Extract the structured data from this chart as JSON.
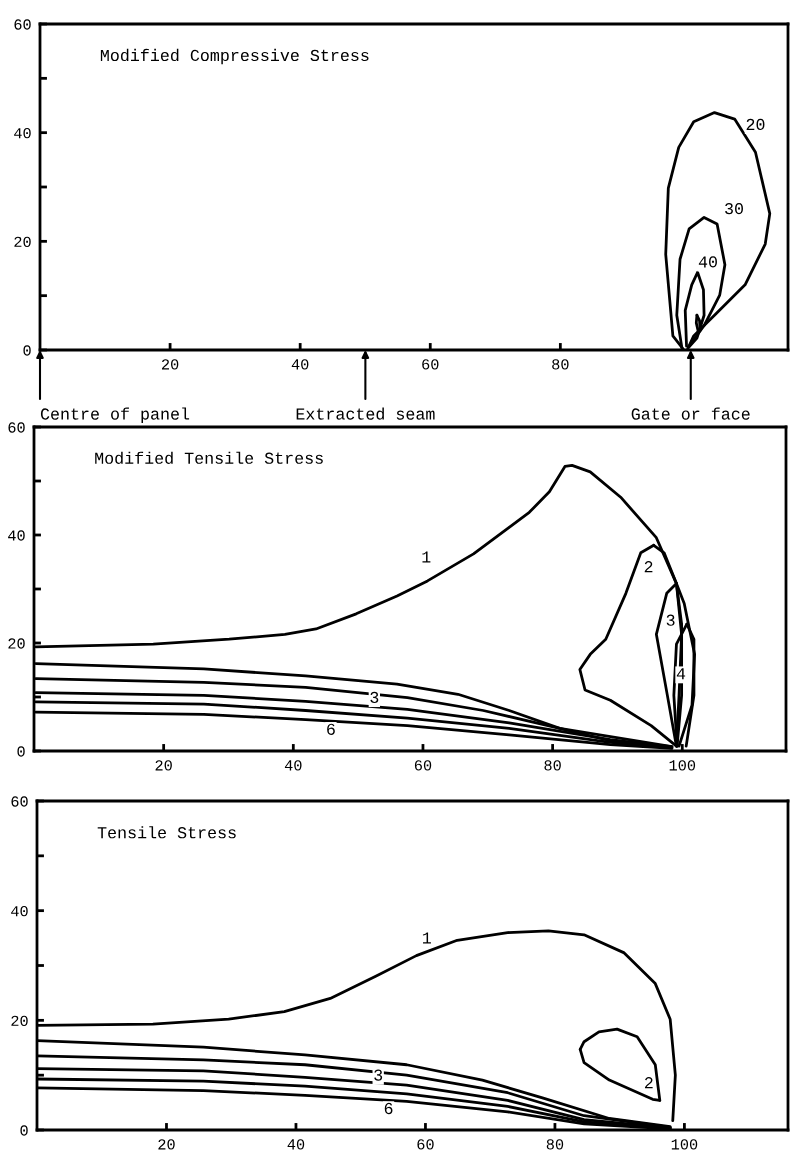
{
  "chart_data": [
    {
      "type": "line",
      "title": "Modified Compressive Stress",
      "xlim": [
        0,
        115
      ],
      "ylim": [
        0,
        60
      ],
      "xticks": [
        20,
        40,
        60,
        80
      ],
      "yticks": [
        0,
        {
          "value": 10,
          "label": null
        },
        20,
        {
          "value": 30,
          "label": null
        },
        40,
        {
          "value": 50,
          "label": null
        },
        60
      ],
      "line_style": "solid",
      "series": [
        {
          "color": "#000000",
          "x": [
            99,
            97.3,
            96.2,
            96.6,
            98.2,
            100.5,
            103.7,
            106.8,
            110,
            112.2,
            111.5,
            108.4,
            103.7,
            100.5,
            99.5
          ],
          "values": [
            0,
            2.6,
            17.6,
            29.8,
            37.3,
            42,
            43.7,
            42.5,
            36.4,
            25.1,
            19.5,
            12,
            6.4,
            2.6,
            0
          ]
        },
        {
          "color": "#000000",
          "x": [
            98.7,
            97.9,
            98.4,
            99.8,
            102.1,
            104.1,
            105.3,
            104.5,
            102.1,
            99.8
          ],
          "values": [
            0.3,
            6.4,
            16.7,
            22.3,
            24.4,
            23.2,
            15.7,
            10.1,
            4.5,
            0.7
          ]
        },
        {
          "color": "#000000",
          "x": [
            99.4,
            99.2,
            100.2,
            101.1,
            102,
            102.1,
            101,
            99.8
          ],
          "values": [
            0.7,
            7.3,
            12,
            14.3,
            11.1,
            6.4,
            2.2,
            0.6
          ]
        },
        {
          "color": "#000000",
          "x": [
            101,
            101.4,
            101.5,
            101.2
          ],
          "values": [
            6.4,
            5.4,
            3.6,
            3.4
          ]
        },
        {
          "color": "#000000",
          "x": [
            101.2,
            100.9,
            101
          ],
          "values": [
            3.4,
            5,
            6.4
          ]
        }
      ],
      "annotations": [
        {
          "text": "20",
          "x": 110,
          "y": 41.3
        },
        {
          "text": "30",
          "x": 106.7,
          "y": 25.8
        },
        {
          "text": "40",
          "x": 102.7,
          "y": 16
        },
        "Centre of panel",
        "Extracted seam",
        "Gate or face"
      ]
    },
    {
      "type": "line",
      "title": "Modified Tensile Stress",
      "xlim": [
        0,
        116
      ],
      "ylim": [
        0,
        60
      ],
      "xticks": [
        20,
        40,
        60,
        80,
        100
      ],
      "yticks": [
        0,
        {
          "value": 10,
          "label": null
        },
        20,
        {
          "value": 30,
          "label": null
        },
        40,
        {
          "value": 50,
          "label": null
        },
        60
      ],
      "line_style": "solid",
      "series": [
        {
          "color": "#000000",
          "x": [
            0.3,
            18.4,
            30.1,
            38.7,
            43.5,
            49.7,
            56,
            60.7,
            67.8,
            76.4,
            79.5,
            81.9,
            83,
            85.8,
            90.5,
            96,
            99.1,
            100.3,
            101.9,
            101.5,
            99.5
          ],
          "values": [
            19.3,
            19.8,
            20.7,
            21.6,
            22.6,
            25.4,
            28.7,
            31.5,
            36.5,
            44.2,
            48,
            52.7,
            52.9,
            51.7,
            47,
            39.5,
            31,
            27.3,
            17.9,
            8.5,
            0.9
          ]
        },
        {
          "color": "#000000",
          "x": [
            99.1,
            95.2,
            88.9,
            85,
            84.2,
            85.8,
            88.2,
            91.3,
            93.6,
            95.6
          ],
          "values": [
            0.9,
            4.7,
            9.4,
            11.3,
            15.1,
            17.9,
            20.7,
            29.2,
            36.7,
            38.1
          ]
        },
        {
          "color": "#000000",
          "x": [
            95.6,
            97.2,
            99.1,
            99.9,
            99.5,
            99.1
          ],
          "values": [
            38.1,
            36.7,
            31,
            21.6,
            10.3,
            0.9
          ]
        },
        {
          "color": "#000000",
          "x": [
            99.1,
            97.7,
            96,
            97.6,
            99.1
          ],
          "values": [
            0.9,
            10.3,
            21.6,
            29.2,
            31
          ]
        },
        {
          "color": "#000000",
          "x": [
            99.1,
            99.9,
            99.9,
            99.2
          ],
          "values": [
            31,
            23.5,
            10.3,
            0.9
          ]
        },
        {
          "color": "#000000",
          "x": [
            99.2,
            98.7,
            99.1,
            100.7
          ],
          "values": [
            0.9,
            10.3,
            19.8,
            23.5
          ]
        },
        {
          "color": "#000000",
          "x": [
            100.7,
            101.8,
            101.8,
            100.6
          ],
          "values": [
            23.5,
            20.7,
            10.3,
            0.9
          ]
        },
        {
          "color": "#000000",
          "x": [
            0.3,
            26.2,
            41.9,
            56,
            65.4,
            73.3,
            81.1,
            88.9,
            98.4
          ],
          "values": [
            16.2,
            15.2,
            13.9,
            12.4,
            10.5,
            7.5,
            4.2,
            1.9,
            0.8
          ]
        },
        {
          "color": "#000000",
          "x": [
            0.3,
            26.2,
            41.9,
            57.6,
            69.3,
            81.1,
            98.4
          ],
          "values": [
            13.4,
            12.7,
            11.8,
            9.9,
            7.5,
            4.2,
            0.8
          ]
        },
        {
          "color": "#000000",
          "x": [
            0.3,
            26.2,
            41.9,
            57.6,
            73.3,
            88.9,
            98.4
          ],
          "values": [
            10.8,
            10.3,
            9.2,
            7.7,
            5.2,
            2.1,
            0.7
          ]
        },
        {
          "color": "#000000",
          "x": [
            0.3,
            26.2,
            41.9,
            57.6,
            73.3,
            88.9,
            98.4
          ],
          "values": [
            9.1,
            8.7,
            7.5,
            6.1,
            4.2,
            1.6,
            0.6
          ]
        },
        {
          "color": "#000000",
          "x": [
            0.3,
            26.2,
            41.9,
            57.6,
            73.3,
            88.9,
            98.4
          ],
          "values": [
            7.2,
            6.8,
            5.8,
            4.7,
            3,
            1.2,
            0.5
          ]
        }
      ],
      "annotations": [
        {
          "text": "1",
          "x": 60.5,
          "y": 35.7
        },
        {
          "text": "2",
          "x": 94.8,
          "y": 33.9
        },
        {
          "text": "3",
          "x": 98.2,
          "y": 24
        },
        {
          "text": "4",
          "x": 99.8,
          "y": 14.1
        },
        {
          "text": "3",
          "x": 52.5,
          "y": 9.7
        },
        {
          "text": "6",
          "x": 45.8,
          "y": 3.8
        }
      ]
    },
    {
      "type": "line",
      "title": "Tensile Stress",
      "xlim": [
        0,
        116
      ],
      "ylim": [
        0,
        60
      ],
      "xticks": [
        20,
        40,
        60,
        80,
        100
      ],
      "yticks": [
        0,
        {
          "value": 10,
          "label": null
        },
        20,
        {
          "value": 30,
          "label": null
        },
        40,
        {
          "value": 50,
          "label": null
        },
        60
      ],
      "line_style": "solid",
      "series": [
        {
          "color": "#000000",
          "x": [
            0,
            17.9,
            29.6,
            38.2,
            45.3,
            52.4,
            58.6,
            64.9,
            72.7,
            79,
            84.5,
            90.7,
            95.5,
            97.8,
            98.6,
            98.2
          ],
          "values": [
            19.1,
            19.3,
            20.2,
            21.6,
            24,
            28.1,
            31.8,
            34.6,
            36,
            36.3,
            35.6,
            32.3,
            26.7,
            20.2,
            10,
            1.7
          ]
        },
        {
          "color": "#000000",
          "x": [
            83.9,
            84.5,
            86.8,
            89.6,
            92.7,
            95.5,
            96.2
          ],
          "values": [
            14.7,
            16.1,
            17.9,
            18.4,
            17,
            11.9,
            5.4
          ]
        },
        {
          "color": "#000000",
          "x": [
            96.2,
            95.1,
            88.4,
            84.5,
            83.9
          ],
          "values": [
            5.4,
            5.6,
            9.1,
            12.3,
            14.7
          ]
        },
        {
          "color": "#000000",
          "x": [
            0,
            25.7,
            41.4,
            57.1,
            68.8,
            78.2,
            88.4,
            97.8
          ],
          "values": [
            16.3,
            15.1,
            13.7,
            11.9,
            9.1,
            5.8,
            2.1,
            0.6
          ]
        },
        {
          "color": "#000000",
          "x": [
            0,
            25.7,
            41.4,
            57.1,
            72.7,
            84.5,
            97.8
          ],
          "values": [
            13.5,
            12.8,
            11.9,
            10,
            6.8,
            2.6,
            0.5
          ]
        },
        {
          "color": "#000000",
          "x": [
            0,
            25.7,
            41.4,
            57.1,
            72.7,
            84.5,
            97.8
          ],
          "values": [
            11.2,
            10.8,
            9.6,
            8.2,
            5.4,
            1.9,
            0.4
          ]
        },
        {
          "color": "#000000",
          "x": [
            0,
            25.7,
            41.4,
            57.1,
            72.7,
            84.5,
            97.8
          ],
          "values": [
            9.3,
            8.9,
            8,
            6.6,
            4.3,
            1.5,
            0.3
          ]
        },
        {
          "color": "#000000",
          "x": [
            0,
            25.7,
            41.4,
            57.1,
            72.7,
            84.5,
            97.8
          ],
          "values": [
            7.7,
            7.2,
            6.3,
            5.2,
            3.3,
            1.1,
            0.2
          ]
        }
      ],
      "annotations": [
        {
          "text": "1",
          "x": 60.2,
          "y": 34.8
        },
        {
          "text": "2",
          "x": 94.5,
          "y": 8.4
        },
        {
          "text": "3",
          "x": 52.7,
          "y": 9.8
        },
        {
          "text": "6",
          "x": 54.3,
          "y": 3.7
        }
      ]
    }
  ]
}
